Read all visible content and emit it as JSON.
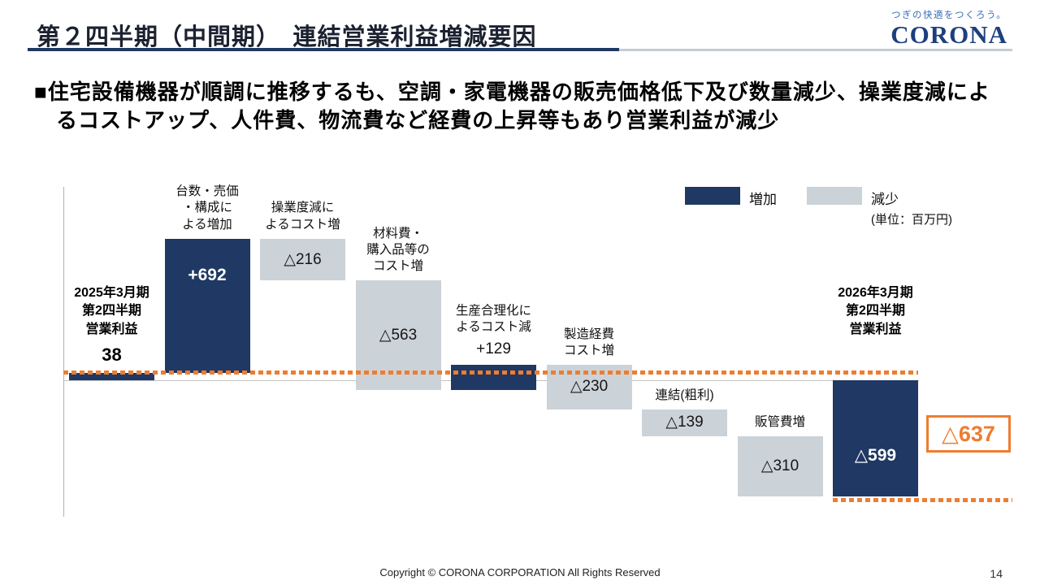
{
  "page": {
    "title": "第２四半期（中間期）　連結営業利益増減要因",
    "footer": "Copyright © CORONA CORPORATION All Rights Reserved",
    "page_number": "14"
  },
  "logo": {
    "tagline": "つぎの快適をつくろう。",
    "brand": "CORONA"
  },
  "lead": {
    "line1": "■住宅設備機器が順調に推移するも、空調・家電機器の販売価格低下及び数量減少、操業度減によ",
    "line2": "るコストアップ、人件費、物流費など経費の上昇等もあり営業利益が減少"
  },
  "chart_data": {
    "type": "waterfall",
    "title": "連結営業利益増減要因（第２四半期・中間期）",
    "unit_note": "(単位：百万円)",
    "legend": {
      "increase_label": "増加",
      "decrease_label": "減少"
    },
    "colors": {
      "increase": "#1f3864",
      "decrease": "#cbd2d8",
      "accent": "#ed7d31"
    },
    "start_value": 38,
    "end_value": -599,
    "total_change_display": "△637",
    "bars": [
      {
        "kind": "start",
        "label_lines": [
          "2025年3月期",
          "第2四半期",
          "営業利益"
        ],
        "value": 38,
        "display": "38",
        "color": "increase",
        "value_pos": "outside"
      },
      {
        "kind": "delta",
        "label_lines": [
          "台数・売価",
          "・構成に",
          "よる増加"
        ],
        "value": 692,
        "display": "+692",
        "color": "increase",
        "value_pos": "upper"
      },
      {
        "kind": "delta",
        "label_lines": [
          "操業度減に",
          "よるコスト増"
        ],
        "value": -216,
        "display": "△216",
        "color": "decrease",
        "value_pos": "center"
      },
      {
        "kind": "delta",
        "label_lines": [
          "材料費・",
          "購入品等の",
          "コスト増"
        ],
        "value": -563,
        "display": "△563",
        "color": "decrease",
        "value_pos": "center"
      },
      {
        "kind": "delta",
        "label_lines": [
          "生産合理化に",
          "よるコスト減"
        ],
        "value": 129,
        "display": "+129",
        "color": "increase",
        "value_pos": "above"
      },
      {
        "kind": "delta",
        "label_lines": [
          "製造経費",
          "コスト増"
        ],
        "value": -230,
        "display": "△230",
        "color": "decrease",
        "value_pos": "center"
      },
      {
        "kind": "delta",
        "label_lines": [
          "連結(粗利)"
        ],
        "value": -139,
        "display": "△139",
        "color": "decrease",
        "value_pos": "center"
      },
      {
        "kind": "delta",
        "label_lines": [
          "販管費増"
        ],
        "value": -310,
        "display": "△310",
        "color": "decrease",
        "value_pos": "center"
      },
      {
        "kind": "end",
        "label_lines": [
          "2026年3月期",
          "第2四半期",
          "営業利益"
        ],
        "value": -599,
        "display": "△599",
        "color": "increase",
        "value_pos": "lower"
      }
    ]
  }
}
